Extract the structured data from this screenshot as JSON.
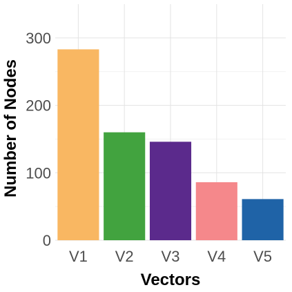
{
  "chart_data": {
    "type": "bar",
    "categories": [
      "V1",
      "V2",
      "V3",
      "V4",
      "V5"
    ],
    "values": [
      283,
      160,
      146,
      86,
      61
    ],
    "colors": [
      "#F9B762",
      "#42A33F",
      "#5B2A8C",
      "#F5888B",
      "#1F63A7"
    ],
    "xlabel": "Vectors",
    "ylabel": "Number of Nodes",
    "ylim": [
      0,
      350
    ],
    "yticks": [
      0,
      100,
      200,
      300
    ],
    "ytick_labels": [
      "0",
      "100",
      "200",
      "300"
    ],
    "grid": true,
    "legend": "none"
  }
}
